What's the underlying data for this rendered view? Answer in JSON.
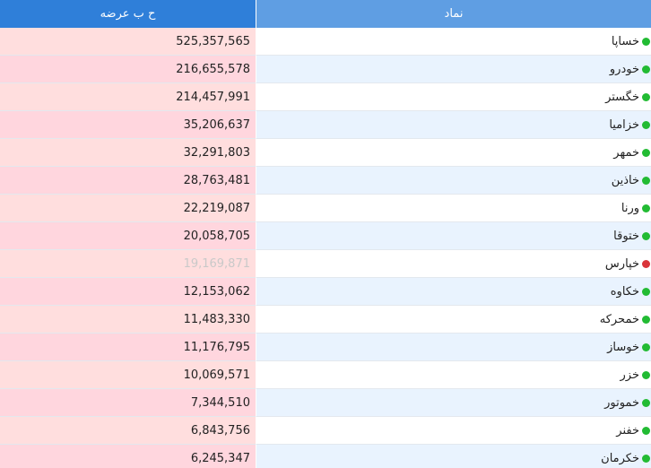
{
  "header": {
    "volume_label": "ح ب عرضه",
    "symbol_label": "نماد"
  },
  "rows": [
    {
      "symbol": "خساپا",
      "volume": "525,357,565",
      "status": "green",
      "muted": false
    },
    {
      "symbol": "خودرو",
      "volume": "216,655,578",
      "status": "green",
      "muted": false
    },
    {
      "symbol": "خگستر",
      "volume": "214,457,991",
      "status": "green",
      "muted": false
    },
    {
      "symbol": "خزامیا",
      "volume": "35,206,637",
      "status": "green",
      "muted": false
    },
    {
      "symbol": "خمهر",
      "volume": "32,291,803",
      "status": "green",
      "muted": false
    },
    {
      "symbol": "خاذین",
      "volume": "28,763,481",
      "status": "green",
      "muted": false
    },
    {
      "symbol": "ورنا",
      "volume": "22,219,087",
      "status": "green",
      "muted": false
    },
    {
      "symbol": "ختوقا",
      "volume": "20,058,705",
      "status": "green",
      "muted": false
    },
    {
      "symbol": "خپارس",
      "volume": "19,169,871",
      "status": "red",
      "muted": true
    },
    {
      "symbol": "خکاوه",
      "volume": "12,153,062",
      "status": "green",
      "muted": false
    },
    {
      "symbol": "خمحرکه",
      "volume": "11,483,330",
      "status": "green",
      "muted": false
    },
    {
      "symbol": "خوساز",
      "volume": "11,176,795",
      "status": "green",
      "muted": false
    },
    {
      "symbol": "خزر",
      "volume": "10,069,571",
      "status": "green",
      "muted": false
    },
    {
      "symbol": "خموتور",
      "volume": "7,344,510",
      "status": "green",
      "muted": false
    },
    {
      "symbol": "خفنر",
      "volume": "6,843,756",
      "status": "green",
      "muted": false
    },
    {
      "symbol": "خکرمان",
      "volume": "6,245,347",
      "status": "green",
      "muted": false
    }
  ],
  "colors": {
    "header_volume": "#2f7fd9",
    "header_symbol": "#5f9ee3",
    "volume_cell": "#ffdede",
    "symbol_cell_alt": "#e9f3fe",
    "status_green": "#22bb33",
    "status_red": "#d9343a"
  }
}
